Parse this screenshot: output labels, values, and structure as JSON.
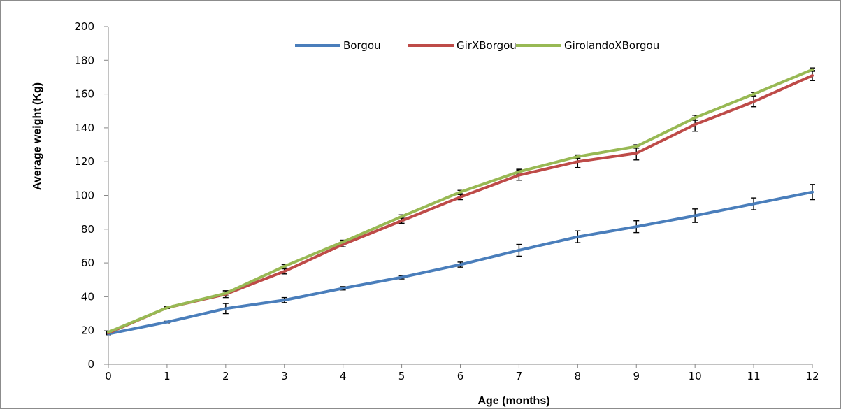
{
  "chart_data": {
    "type": "line",
    "title": "",
    "xlabel": "Age (months)",
    "ylabel": "Average weight (Kg)",
    "x": [
      0,
      1,
      2,
      3,
      4,
      5,
      6,
      7,
      8,
      9,
      10,
      11,
      12
    ],
    "xlim": [
      0,
      12
    ],
    "ylim": [
      0,
      200
    ],
    "yticks": [
      0,
      20,
      40,
      60,
      80,
      100,
      120,
      140,
      160,
      180,
      200
    ],
    "xticks": [
      0,
      1,
      2,
      3,
      4,
      5,
      6,
      7,
      8,
      9,
      10,
      11,
      12
    ],
    "grid": false,
    "legend_position": "top-right",
    "series": [
      {
        "name": "Borgou",
        "color": "#4a7ebb",
        "values": [
          18,
          25,
          33,
          38,
          45,
          51.5,
          59,
          67.5,
          75.5,
          81.5,
          88,
          95,
          102
        ],
        "errors": [
          0.5,
          0.5,
          3,
          1.5,
          1,
          1,
          1.5,
          3.5,
          3.5,
          3.5,
          4,
          3.5,
          4.5
        ]
      },
      {
        "name": "GirXBorgou",
        "color": "#be4b48",
        "values": [
          18.5,
          33.5,
          41.5,
          55,
          71,
          85,
          99,
          112,
          120,
          125,
          142,
          155.5,
          171
        ],
        "errors": [
          0.5,
          0.5,
          2,
          1.5,
          1.5,
          1.5,
          1.5,
          3,
          3.5,
          4,
          4,
          3,
          3
        ]
      },
      {
        "name": "GirolandoXBorgou",
        "color": "#98b954",
        "values": [
          19,
          33.5,
          42,
          58,
          72.5,
          87.5,
          102,
          114,
          123,
          129,
          146,
          160,
          174.5
        ],
        "errors": [
          0.5,
          0.5,
          1.5,
          1,
          1,
          1,
          1,
          1.5,
          1,
          1,
          1.5,
          1,
          1
        ]
      }
    ]
  }
}
